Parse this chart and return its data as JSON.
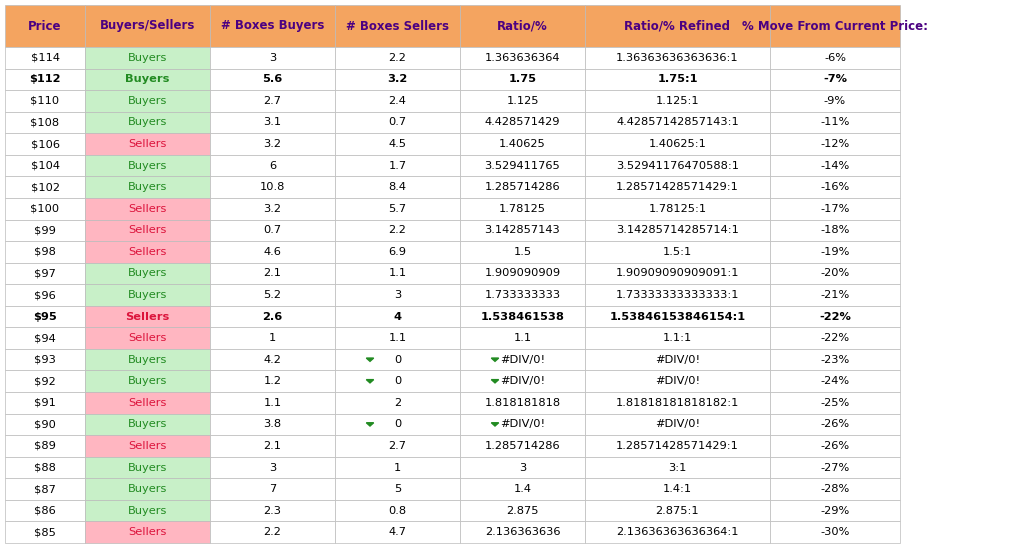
{
  "headers": [
    "Price",
    "Buyers/Sellers",
    "# Boxes Buyers",
    "# Boxes Sellers",
    "Ratio/%",
    "Ratio/% Refined",
    "% Move From Current Price:"
  ],
  "header_bg": "#F4A460",
  "header_text_color": "#4B0082",
  "buyers_bg": "#C8F0C8",
  "sellers_bg": "#FFB6C1",
  "buyers_text_color": "#228B22",
  "sellers_text_color": "#DC143C",
  "price_text_color": "#000000",
  "data_text_color": "#000000",
  "bold_rows": [
    1,
    12
  ],
  "rows": [
    [
      "$114",
      "Buyers",
      "3",
      "2.2",
      "1.363636364",
      "1.36363636363636:1",
      "-6%"
    ],
    [
      "$112",
      "Buyers",
      "5.6",
      "3.2",
      "1.75",
      "1.75:1",
      "-7%"
    ],
    [
      "$110",
      "Buyers",
      "2.7",
      "2.4",
      "1.125",
      "1.125:1",
      "-9%"
    ],
    [
      "$108",
      "Buyers",
      "3.1",
      "0.7",
      "4.428571429",
      "4.42857142857143:1",
      "-11%"
    ],
    [
      "$106",
      "Sellers",
      "3.2",
      "4.5",
      "1.40625",
      "1.40625:1",
      "-12%"
    ],
    [
      "$104",
      "Buyers",
      "6",
      "1.7",
      "3.529411765",
      "3.52941176470588:1",
      "-14%"
    ],
    [
      "$102",
      "Buyers",
      "10.8",
      "8.4",
      "1.285714286",
      "1.28571428571429:1",
      "-16%"
    ],
    [
      "$100",
      "Sellers",
      "3.2",
      "5.7",
      "1.78125",
      "1.78125:1",
      "-17%"
    ],
    [
      "$99",
      "Sellers",
      "0.7",
      "2.2",
      "3.142857143",
      "3.14285714285714:1",
      "-18%"
    ],
    [
      "$98",
      "Sellers",
      "4.6",
      "6.9",
      "1.5",
      "1.5:1",
      "-19%"
    ],
    [
      "$97",
      "Buyers",
      "2.1",
      "1.1",
      "1.909090909",
      "1.90909090909091:1",
      "-20%"
    ],
    [
      "$96",
      "Buyers",
      "5.2",
      "3",
      "1.733333333",
      "1.73333333333333:1",
      "-21%"
    ],
    [
      "$95",
      "Sellers",
      "2.6",
      "4",
      "1.538461538",
      "1.53846153846154:1",
      "-22%"
    ],
    [
      "$94",
      "Sellers",
      "1",
      "1.1",
      "1.1",
      "1.1:1",
      "-22%"
    ],
    [
      "$93",
      "Buyers",
      "4.2",
      "0",
      "#DIV/0!",
      "#DIV/0!",
      "-23%"
    ],
    [
      "$92",
      "Buyers",
      "1.2",
      "0",
      "#DIV/0!",
      "#DIV/0!",
      "-24%"
    ],
    [
      "$91",
      "Sellers",
      "1.1",
      "2",
      "1.818181818",
      "1.81818181818182:1",
      "-25%"
    ],
    [
      "$90",
      "Buyers",
      "3.8",
      "0",
      "#DIV/0!",
      "#DIV/0!",
      "-26%"
    ],
    [
      "$89",
      "Sellers",
      "2.1",
      "2.7",
      "1.285714286",
      "1.28571428571429:1",
      "-26%"
    ],
    [
      "$88",
      "Buyers",
      "3",
      "1",
      "3",
      "3:1",
      "-27%"
    ],
    [
      "$87",
      "Buyers",
      "7",
      "5",
      "1.4",
      "1.4:1",
      "-28%"
    ],
    [
      "$86",
      "Buyers",
      "2.3",
      "0.8",
      "2.875",
      "2.875:1",
      "-29%"
    ],
    [
      "$85",
      "Sellers",
      "2.2",
      "4.7",
      "2.136363636",
      "2.13636363636364:1",
      "-30%"
    ]
  ],
  "div0_rows": [
    14,
    15,
    17
  ],
  "figsize": [
    10.24,
    5.48
  ],
  "dpi": 100
}
